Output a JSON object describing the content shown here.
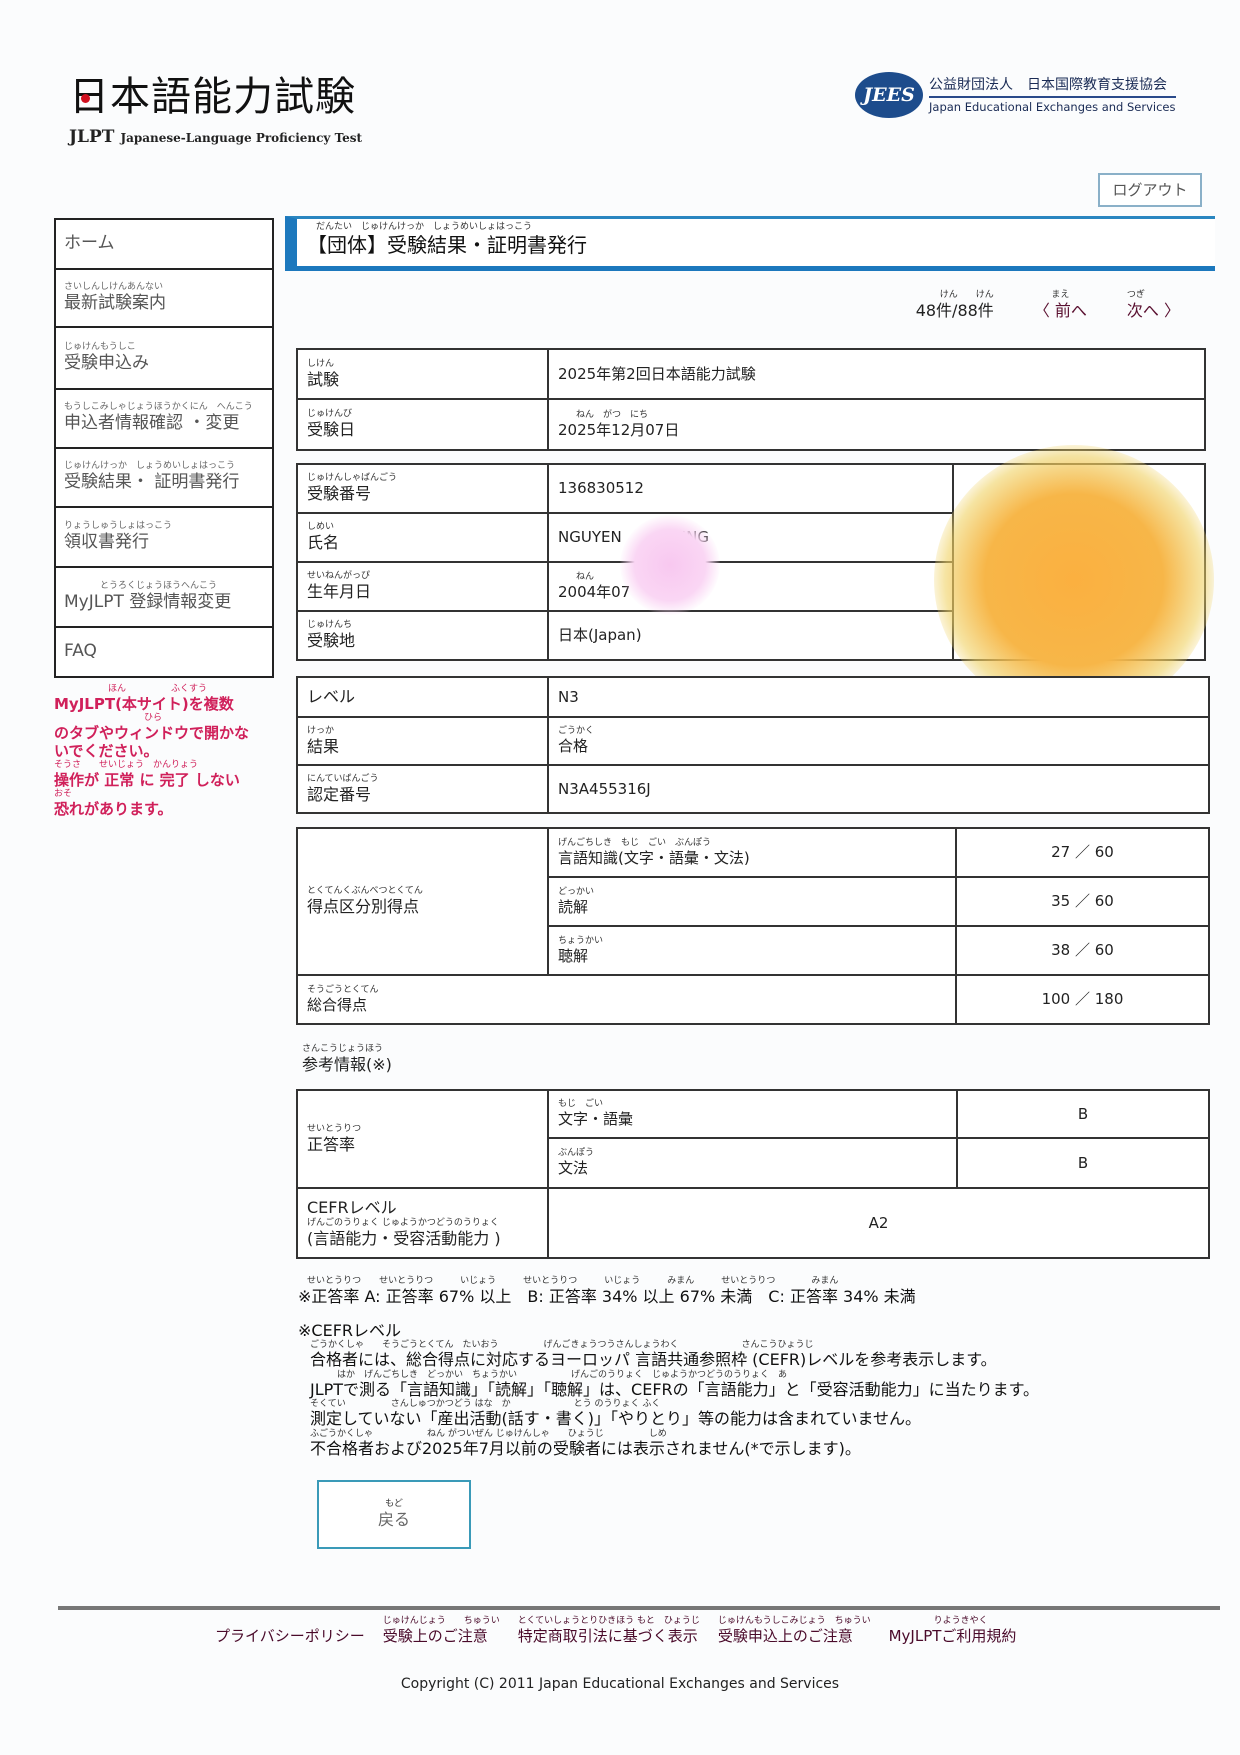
{
  "logo": {
    "title": "日本語能力試験",
    "abbr": "JLPT",
    "subtitle": "Japanese-Language Proficiency Test"
  },
  "org": {
    "mark": "JEES",
    "name_ja": "公益財団法人　日本国際教育支援協会",
    "name_en": "Japan Educational Exchanges and Services"
  },
  "logout_label": "ログアウト",
  "sidebar": {
    "items": [
      {
        "ruby": "",
        "label": "ホーム"
      },
      {
        "ruby": "さいしんしけんあんない",
        "label": "最新試験案内"
      },
      {
        "ruby": "じゅけんもうしこ",
        "label": "受験申込み"
      },
      {
        "ruby": "もうしこみしゃじょうほうかくにん　へんこう",
        "label": "申込者情報確認 ・変更"
      },
      {
        "ruby": "じゅけんけっか　しょうめいしょはっこう",
        "label": "受験結果・ 証明書発行"
      },
      {
        "ruby": "りょうしゅうしょはっこう",
        "label": "領収書発行"
      },
      {
        "ruby": "　　　　とうろくじょうほうへんこう",
        "label": "MyJLPT 登録情報変更"
      },
      {
        "ruby": "",
        "label": "FAQ"
      }
    ],
    "warning": [
      {
        "ruby": "　　　　　　ほん　　　　　ふくすう",
        "text": "MyJLPT(本サイト)を複数"
      },
      {
        "ruby": "　　　　　　　　　　ひら",
        "text": "のタブやウィンドウで開かな"
      },
      {
        "ruby": "",
        "text": "いでください。"
      },
      {
        "ruby": "そうさ　　せいじょう　かんりょう",
        "text": "操作が 正常 に 完了 しない"
      },
      {
        "ruby": "おそ",
        "text": "恐れがあります。"
      }
    ]
  },
  "header": {
    "ruby": "　だんたい　じゅけんけっか　しょうめいしょはっこう",
    "title": "【団体】受験結果・証明書発行"
  },
  "pager": {
    "count_ruby": "けん　　けん",
    "count": "48件/88件",
    "prev_ruby": "まえ",
    "prev": "〈 前へ",
    "next_ruby": "つぎ",
    "next": "次へ 〉"
  },
  "exam": {
    "exam_ruby": "しけん",
    "exam_label": "試験",
    "exam_value": "2025年第2回日本語能力試験",
    "date_ruby": "じゅけんび",
    "date_label": "受験日",
    "date_value_ruby": "　　ねん　がつ　にち",
    "date_value": "2025年12月07日"
  },
  "examinee": {
    "number_ruby": "じゅけんしゃばんごう",
    "number_label": "受験番号",
    "number_value": "136830512",
    "name_ruby": "しめい",
    "name_label": "氏名",
    "name_value": "NGUYEN　　　　ING",
    "dob_ruby": "せいねんがっぴ",
    "dob_label": "生年月日",
    "dob_value_ruby": "　　ねん",
    "dob_value": "2004年07",
    "site_ruby": "じゅけんち",
    "site_label": "受験地",
    "site_value": "日本(Japan)"
  },
  "result": {
    "level_label": "レベル",
    "level_value": "N3",
    "result_ruby": "けっか",
    "result_label": "結果",
    "result_value_ruby": "ごうかく",
    "result_value": "合格",
    "cert_ruby": "にんていばんごう",
    "cert_label": "認定番号",
    "cert_value": "N3A455316J"
  },
  "scores": {
    "section_ruby": "とくてんくぶんべつとくてん",
    "section_label": "得点区分別得点",
    "rows": [
      {
        "ruby": "げんごちしき　もじ　ごい　ぶんぽう",
        "label": "言語知識(文字・語彙・文法)",
        "score": "27 ／ 60"
      },
      {
        "ruby": "どっかい",
        "label": "読解",
        "score": "35 ／ 60"
      },
      {
        "ruby": "ちょうかい",
        "label": "聴解",
        "score": "38 ／ 60"
      }
    ],
    "total_ruby": "そうごうとくてん",
    "total_label": "総合得点",
    "total_score": "100 ／ 180"
  },
  "reference": {
    "heading_ruby": "さんこうじょうほう",
    "heading": "参考情報(※)",
    "rate_ruby": "せいとうりつ",
    "rate_label": "正答率",
    "rates": [
      {
        "ruby": "もじ　ごい",
        "label": "文字・語彙",
        "grade": "B"
      },
      {
        "ruby": "ぶんぽう",
        "label": "文法",
        "grade": "B"
      }
    ],
    "cefr_label": "CEFRレベル",
    "cefr_sub_ruby": "げんごのうりょく じゅようかつどうのうりょく",
    "cefr_sub": "(言語能力・受容活動能力 )",
    "cefr_value": "A2"
  },
  "notes": {
    "rate_ruby": "　せいとうりつ　　せいとうりつ　　　いじょう　　　せいとうりつ　　　いじょう　　　みまん　　　せいとうりつ　　　　みまん",
    "rate_text": "※正答率 A: 正答率 67% 以上　B: 正答率 34% 以上 67% 未満　C: 正答率 34% 未満",
    "cefr_heading": "※CEFRレベル",
    "lines": [
      {
        "ruby": "ごうかくしゃ　　そうごうとくてん　たいおう　　　　　げんごきょうつうさんしょうわく　　　　　　　さんこうひょうじ",
        "text": "合格者には、総合得点に対応するヨーロッパ 言語共通参照枠 (CEFR)レベルを参考表示します。"
      },
      {
        "ruby": "　　　はか　げんごちしき　どっかい　ちょうかい　　　　　　げんごのうりょく　じゅようかつどうのうりょく　あ",
        "text": "JLPTで測る「言語知識」「読解」「聴解」は、CEFRの「言語能力」と「受容活動能力」に当たります。"
      },
      {
        "ruby": "そくてい　　　　　さんしゅつかつどう はな　か　　　　　　　とう のうりょく ふく",
        "text": "測定していない「産出活動(話す・書く)」「やりとり」等の能力は含まれていません。"
      },
      {
        "ruby": "ふごうかくしゃ　　　　　　ねん がついぜん じゅけんしゃ　　ひょうじ　　　　　しめ",
        "text": "不合格者および2025年7月以前の受験者には表示されません(*で示します)。"
      }
    ]
  },
  "back": {
    "ruby": "もど",
    "label": "戻る"
  },
  "footer": {
    "links": [
      {
        "ruby": "",
        "label": "プライバシーポリシー"
      },
      {
        "ruby": "じゅけんじょう　　ちゅうい",
        "label": "受験上のご注意"
      },
      {
        "ruby": "とくていしょうとりひきほう もと　ひょうじ",
        "label": "特定商取引法に基づく表示"
      },
      {
        "ruby": "じゅけんもうしこみじょう　ちゅうい",
        "label": "受験申込上のご注意"
      },
      {
        "ruby": "　　　　　りようきやく",
        "label": "MyJLPTご利用規約"
      }
    ],
    "copyright": "Copyright (C) 2011 Japan Educational Exchanges and Services"
  },
  "colors": {
    "accent": "#1c78bd",
    "warning": "#d0205a",
    "link": "#4a0a2a"
  }
}
